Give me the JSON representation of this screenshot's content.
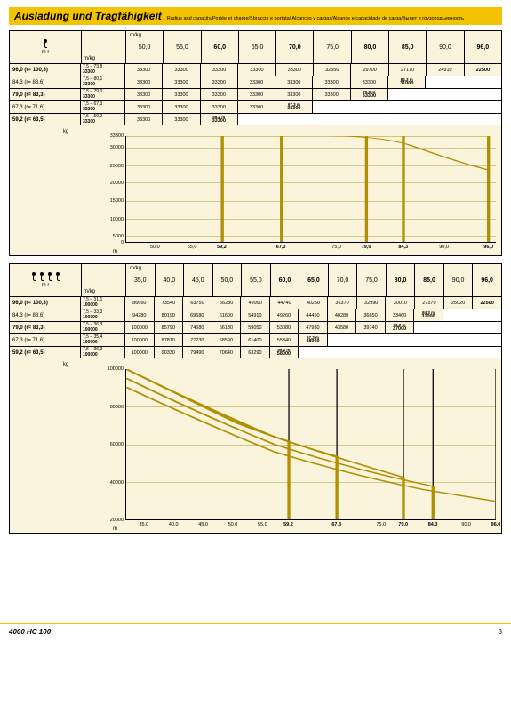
{
  "title": {
    "main": "Ausladung und Tragfähigkeit",
    "sub": "Radius and capacity/Portée et charge/Sbraccio e portata/\nAlcances y cargas/Alcance e capacidade de carga/Вылет и грузоподъемность"
  },
  "footer": {
    "model": "4000 HC 100",
    "page": "3"
  },
  "unit": "m/kg",
  "mr": "m    r",
  "mkg": "m/kg",
  "kg": "kg",
  "m": "m",
  "styling": {
    "bg": "#faf4dc",
    "accent": "#f3c200",
    "grid": "#d4c98a",
    "curve": "#b08f00",
    "font": "Arial",
    "title_size": 12,
    "cell_size": 5.5
  },
  "t1": {
    "hooks": 1,
    "cols": [
      "50,0",
      "55,0",
      "60,0",
      "65,0",
      "70,0",
      "75,0",
      "80,0",
      "85,0",
      "90,0",
      "96,0"
    ],
    "bold_cols": [
      2,
      4,
      6,
      7,
      9
    ],
    "rows": [
      {
        "r": "96,0  (r= 100,3)",
        "rb": true,
        "rang": "7,5 – 73,8",
        "rv": "33300",
        "c": [
          "33300",
          "33300",
          "33300",
          "33300",
          "33300",
          "32550",
          "29700",
          "27170",
          "24910",
          "22500"
        ],
        "last_bold": true
      },
      {
        "r": "84,3  (r= 88,6)",
        "rang": "7,5 – 80,1",
        "rv": "33300",
        "c": [
          "33300",
          "33300",
          "33300",
          "33300",
          "33300",
          "33300",
          "33300",
          {
            "bm": "84,3 m",
            "v": "31000"
          },
          "",
          ""
        ]
      },
      {
        "r": "79,0  (r= 83,3)",
        "rb": true,
        "rang": "7,5 – 79,0",
        "rv": "33300",
        "c": [
          "33300",
          "33300",
          "33300",
          "33300",
          "33300",
          "33300",
          {
            "bm": "79,0 m",
            "v": "33300"
          },
          "",
          "",
          ""
        ]
      },
      {
        "r": "67,3  (r= 71,6)",
        "rang": "7,5 – 67,3",
        "rv": "33300",
        "c": [
          "33300",
          "33300",
          "33300",
          "33300",
          {
            "bm": "67,3 m",
            "v": "33300"
          },
          "",
          "",
          "",
          "",
          ""
        ]
      },
      {
        "r": "59,2  (r= 63,5)",
        "rb": true,
        "rang": "7,5 – 59,2",
        "rv": "33300",
        "c": [
          "33300",
          "33300",
          {
            "bm": "59,2 m",
            "v": "33300"
          },
          "",
          "",
          "",
          "",
          "",
          "",
          ""
        ]
      }
    ],
    "chart": {
      "yticks": [
        {
          "v": "33300",
          "p": 0
        },
        {
          "v": "30000",
          "p": 11
        },
        {
          "v": "25000",
          "p": 28
        },
        {
          "v": "20000",
          "p": 44
        },
        {
          "v": "15000",
          "p": 61
        },
        {
          "v": "10000",
          "p": 78
        },
        {
          "v": "5000",
          "p": 94
        },
        {
          "v": "0",
          "p": 100
        }
      ],
      "grids": [
        11,
        28,
        44,
        61,
        78,
        94
      ],
      "xticks": [
        {
          "v": "50,0",
          "p": 8
        },
        {
          "v": "55,0",
          "p": 18
        },
        {
          "v": "59,2",
          "p": 26,
          "b": true
        },
        {
          "v": "67,3",
          "p": 42,
          "b": true
        },
        {
          "v": "75,0",
          "p": 57
        },
        {
          "v": "79,0",
          "p": 65,
          "b": true
        },
        {
          "v": "84,3",
          "p": 75,
          "b": true
        },
        {
          "v": "90,0",
          "p": 86
        },
        {
          "v": "96,0",
          "p": 98,
          "b": true
        }
      ],
      "vlines": [
        26,
        42,
        65,
        75,
        98
      ],
      "curves": [
        "M 0 0 L 98 0 L 98 100",
        "M 0 0 L 55 0 Q 70 0 78 10 Q 90 25 98 32",
        "M 0 0 L 75 0 L 75 100",
        "M 0 0 L 65 0 L 65 100",
        "M 0 0 L 42 0 L 42 100",
        "M 0 0 L 26 0 L 26 100"
      ]
    }
  },
  "t2": {
    "hooks": 4,
    "cols": [
      "35,0",
      "40,0",
      "45,0",
      "50,0",
      "55,0",
      "60,0",
      "65,0",
      "70,0",
      "75,0",
      "80,0",
      "85,0",
      "90,0",
      "96,0"
    ],
    "bold_cols": [
      5,
      6,
      9,
      10,
      12
    ],
    "rows": [
      {
        "r": "96,0  (r= 100,3)",
        "rb": true,
        "rang": "7,5 – 31,1",
        "rv": "100000",
        "c": [
          "86660",
          "73540",
          "63750",
          "56230",
          "49990",
          "44740",
          "40250",
          "36370",
          "32990",
          "30010",
          "27370",
          "25020",
          "22500"
        ],
        "last_bold": true
      },
      {
        "r": "84,3  (r= 88,6)",
        "rang": "7,5 – 33,3",
        "rv": "100000",
        "c": [
          "94280",
          "80190",
          "69680",
          "61600",
          "54910",
          "49260",
          "44450",
          "40280",
          "36650",
          "33460",
          {
            "bm": "84,3 m",
            "v": "31000"
          },
          "",
          ""
        ]
      },
      {
        "r": "79,0  (r= 83,3)",
        "rb": true,
        "rang": "7,5 – 36,3",
        "rv": "100000",
        "c": [
          "100000",
          "85790",
          "74680",
          "66130",
          "59050",
          "53080",
          "47980",
          "43580",
          "39740",
          {
            "bm": "79,0 m",
            "v": "37000"
          },
          "",
          "",
          ""
        ]
      },
      {
        "r": "67,3  (r= 71,6)",
        "rang": "7,5 – 35,4",
        "rv": "100000",
        "c": [
          "100000",
          "87810",
          "77230",
          "68590",
          "61400",
          "55340",
          {
            "bm": "67,3 m",
            "v": "48000"
          },
          "",
          "",
          "",
          "",
          "",
          ""
        ]
      },
      {
        "r": "59,2  (r= 63,5)",
        "rb": true,
        "rang": "7,5 – 36,3",
        "rv": "100000",
        "c": [
          "100000",
          "90330",
          "79490",
          "70640",
          "63290",
          {
            "bm": "59,2 m",
            "v": "58000"
          },
          "",
          "",
          "",
          "",
          "",
          "",
          ""
        ]
      }
    ],
    "chart": {
      "yticks": [
        {
          "v": "100000",
          "p": 0
        },
        {
          "v": "80000",
          "p": 25
        },
        {
          "v": "60000",
          "p": 50
        },
        {
          "v": "40000",
          "p": 75
        },
        {
          "v": "20000",
          "p": 100
        }
      ],
      "grids": [
        25,
        50,
        75
      ],
      "xticks": [
        {
          "v": "35,0",
          "p": 5
        },
        {
          "v": "40,0",
          "p": 13
        },
        {
          "v": "45,0",
          "p": 21
        },
        {
          "v": "50,0",
          "p": 29
        },
        {
          "v": "55,0",
          "p": 37
        },
        {
          "v": "59,2",
          "p": 44,
          "b": true
        },
        {
          "v": "67,3",
          "p": 57,
          "b": true
        },
        {
          "v": "75,0",
          "p": 69
        },
        {
          "v": "79,0",
          "p": 75,
          "b": true
        },
        {
          "v": "84,3",
          "p": 83,
          "b": true
        },
        {
          "v": "90,0",
          "p": 92
        },
        {
          "v": "96,0",
          "p": 100,
          "b": true
        }
      ],
      "vlines": [
        44,
        57,
        75,
        83,
        100
      ],
      "curves": [
        "M 0 12 Q 20 35 40 55 Q 60 70 80 80 Q 90 84 100 88",
        "M 0 6 Q 20 30 40 50 Q 60 66 83 78 L 83 100",
        "M 0 0 Q 20 24 40 45 Q 58 60 75 72 L 75 100",
        "M 0 0 Q 15 18 30 36 Q 45 50 57 58 L 57 100",
        "M 0 0 Q 12 14 25 30 Q 36 42 44 48 L 44 100"
      ]
    }
  }
}
